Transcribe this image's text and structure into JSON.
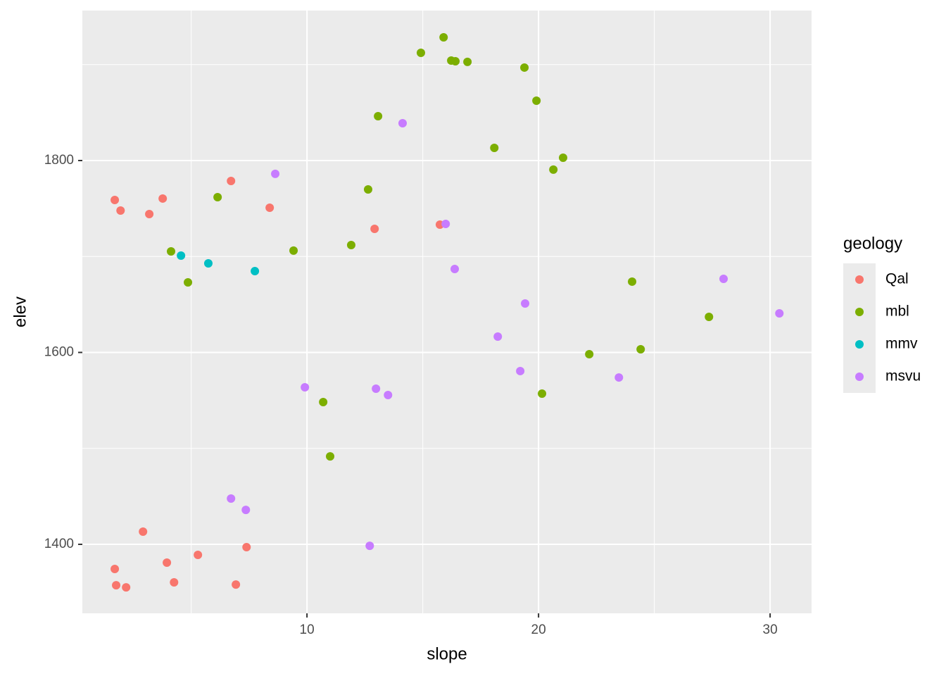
{
  "chart_data": {
    "type": "scatter",
    "x_label": "slope",
    "y_label": "elev",
    "legend_title": "geology",
    "legend": "right",
    "grid": true,
    "xlim": [
      0.3,
      31.79
    ],
    "ylim": [
      1328.1,
      1956.3
    ],
    "xticks": [
      10,
      20,
      30
    ],
    "yticks": [
      1400,
      1600,
      1800
    ],
    "series": [
      {
        "name": "Qal",
        "color": "#F8766D",
        "x": [
          1.7,
          1.95,
          3.19,
          3.77,
          6.72,
          8.39,
          12.92,
          15.74,
          2.92,
          1.7,
          1.76,
          2.19,
          3.95,
          4.26,
          5.29,
          6.93,
          7.39
        ],
        "values": [
          1758.9,
          1747.9,
          1744.2,
          1760.4,
          1778.7,
          1750.8,
          1728.8,
          1733.2,
          1413.2,
          1374.3,
          1357.4,
          1355.2,
          1380.9,
          1360.4,
          1389.0,
          1358.1,
          1397.1
        ]
      },
      {
        "name": "mbl",
        "color": "#7CAE00",
        "x": [
          15.9,
          14.92,
          16.23,
          16.41,
          16.93,
          19.39,
          19.91,
          13.07,
          18.09,
          21.06,
          20.64,
          12.64,
          6.14,
          4.13,
          9.42,
          11.91,
          4.86,
          24.04,
          27.36,
          24.41,
          22.19,
          20.15,
          10.7,
          11.0
        ],
        "values": [
          1928.4,
          1912.3,
          1904.2,
          1903.5,
          1902.8,
          1896.9,
          1862.4,
          1846.2,
          1813.2,
          1802.9,
          1790.5,
          1769.9,
          1761.8,
          1705.3,
          1706.1,
          1711.9,
          1673.0,
          1673.8,
          1637.1,
          1603.3,
          1598.2,
          1557.1,
          1548.3,
          1491.7
        ]
      },
      {
        "name": "mmv",
        "color": "#00BFC4",
        "x": [
          4.56,
          5.74,
          7.75
        ],
        "values": [
          1700.9,
          1692.8,
          1684.8
        ]
      },
      {
        "name": "msvu",
        "color": "#C77CFF",
        "x": [
          14.13,
          8.63,
          15.99,
          16.38,
          19.42,
          18.24,
          19.21,
          23.47,
          27.99,
          30.4,
          9.91,
          12.98,
          13.5,
          6.72,
          7.36,
          12.71
        ],
        "values": [
          1838.9,
          1786.1,
          1733.9,
          1687.0,
          1651.0,
          1616.5,
          1580.6,
          1573.9,
          1676.7,
          1640.7,
          1563.7,
          1562.2,
          1555.6,
          1447.7,
          1435.9,
          1398.5
        ]
      }
    ]
  }
}
